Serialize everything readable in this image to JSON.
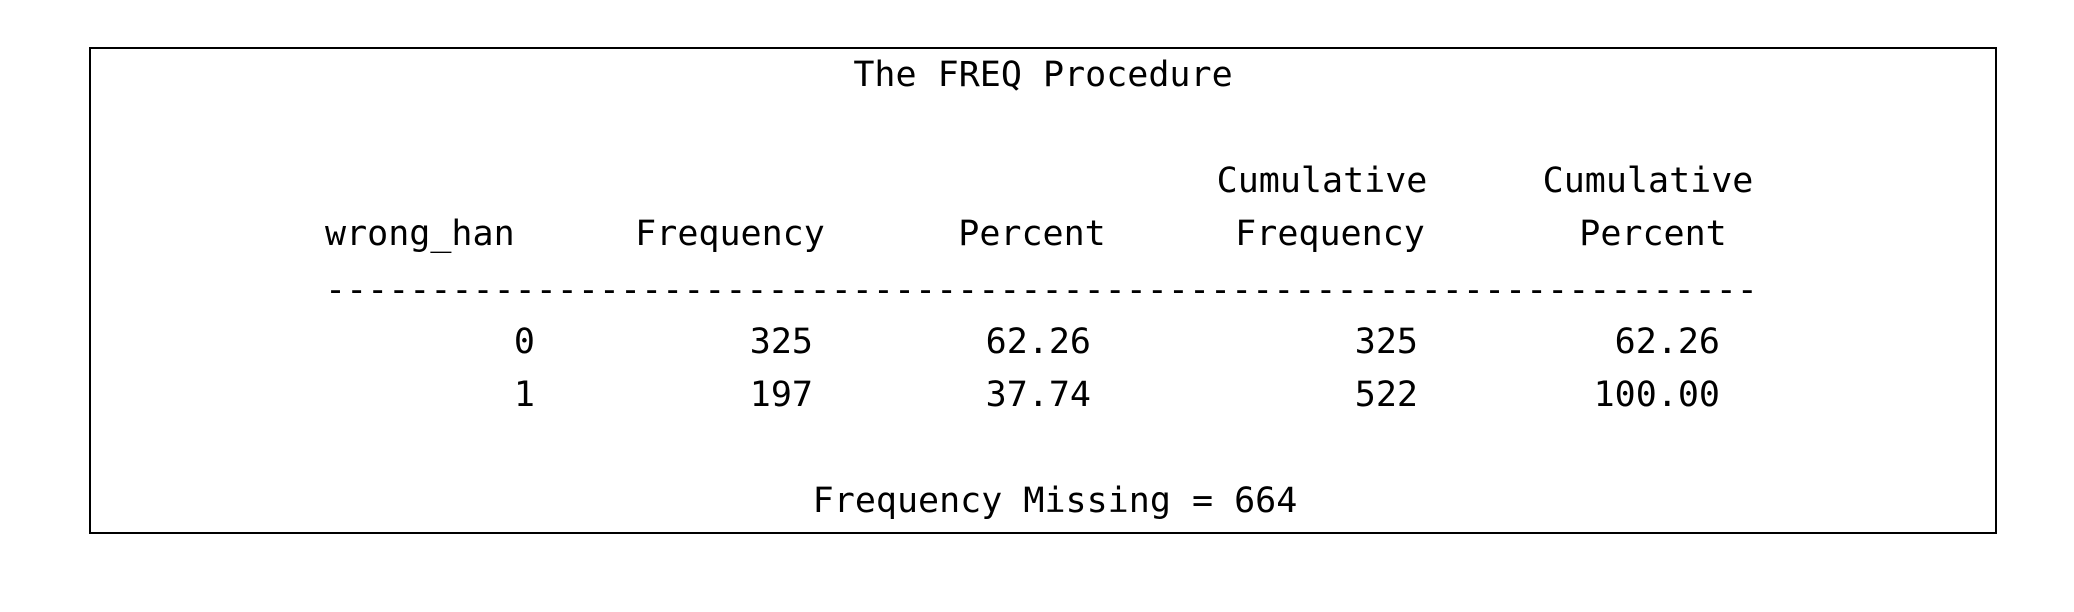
{
  "title": "The FREQ Procedure",
  "table": {
    "headers": [
      {
        "line1": "",
        "line2": "wrong_han"
      },
      {
        "line1": "",
        "line2": "Frequency"
      },
      {
        "line1": "",
        "line2": "Percent"
      },
      {
        "line1": "Cumulative",
        "line2": "Frequency"
      },
      {
        "line1": "Cumulative",
        "line2": "Percent"
      }
    ],
    "separator": "-----------------------------------------------------------------------------",
    "rows": [
      [
        "0",
        "325",
        "62.26",
        "325",
        "62.26"
      ],
      [
        "1",
        "197",
        "37.74",
        "522",
        "100.00"
      ]
    ]
  },
  "footer": "Frequency Missing = 664"
}
